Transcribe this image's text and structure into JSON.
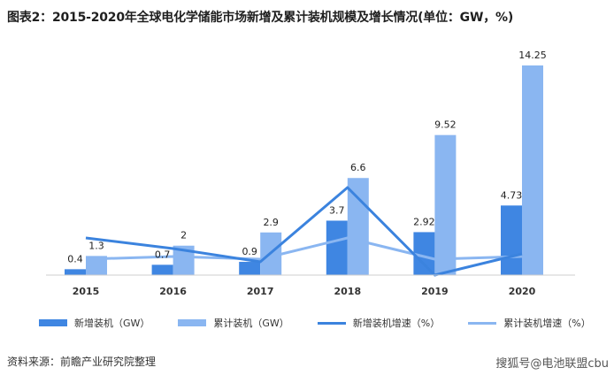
{
  "title": "图表2：2015-2020年全球电化学储能市场新增及累计装机规模及增长情况(单位：GW，%)",
  "source": "资料来源：前瞻产业研究院整理",
  "watermark": "搜狐号@电池联盟cbu",
  "colors": {
    "new": "#3f86e2",
    "cumulative": "#8ab6f1",
    "new_rate": "#3b83de",
    "cum_rate": "#8ab6f1"
  },
  "chart_data": {
    "type": "bar",
    "title": "图表2：2015-2020年全球电化学储能市场新增及累计装机规模及增长情况(单位：GW，%)",
    "categories": [
      "2015",
      "2016",
      "2017",
      "2018",
      "2019",
      "2020"
    ],
    "series": [
      {
        "name": "新增装机（GW）",
        "type": "bar",
        "values": [
          0.4,
          0.7,
          0.9,
          3.7,
          2.92,
          4.73
        ]
      },
      {
        "name": "累计装机（GW）",
        "type": "bar",
        "values": [
          1.3,
          2,
          2.9,
          6.6,
          9.52,
          14.25
        ]
      },
      {
        "name": "新增装机增速（%）",
        "type": "line",
        "values": [
          1.2,
          0.8,
          0.3,
          3.1,
          -0.2,
          0.6
        ]
      },
      {
        "name": "累计装机增速（%）",
        "type": "line",
        "values": [
          0.4,
          0.5,
          0.4,
          1.2,
          0.4,
          0.5
        ]
      }
    ],
    "data_labels": [
      "0.4",
      "0.7",
      "0.9",
      "3.7",
      "2.92",
      "4.73",
      "1.3",
      "2",
      "2.9",
      "6.6",
      "9.52",
      "14.25"
    ],
    "ylim": [
      0,
      15
    ],
    "grid": false,
    "legend_position": "bottom"
  }
}
